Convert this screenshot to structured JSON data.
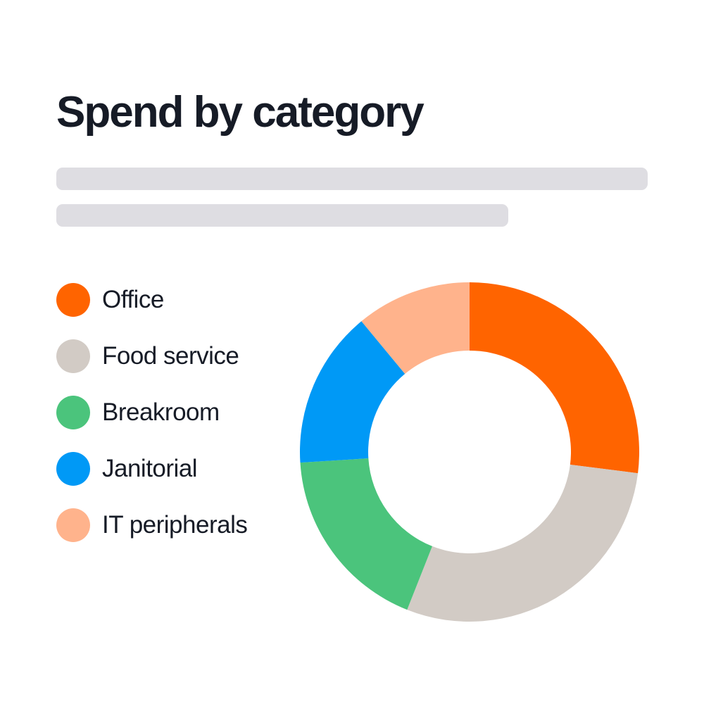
{
  "chart_data": {
    "type": "pie",
    "variant": "donut",
    "title": "Spend by category",
    "legend_placement": "left",
    "categories": [
      "Office",
      "Food service",
      "Breakroom",
      "Janitorial",
      "IT peripherals"
    ],
    "values": [
      27,
      29,
      18,
      15,
      11
    ],
    "unit": "%",
    "start_angle_deg": 0,
    "direction": "clockwise",
    "colors": [
      "#ff6400",
      "#d2cbc5",
      "#4bc47c",
      "#0099f6",
      "#ffb38c"
    ]
  },
  "placeholder_lines": [
    {
      "name": "subtitle-placeholder-1"
    },
    {
      "name": "subtitle-placeholder-2"
    }
  ]
}
